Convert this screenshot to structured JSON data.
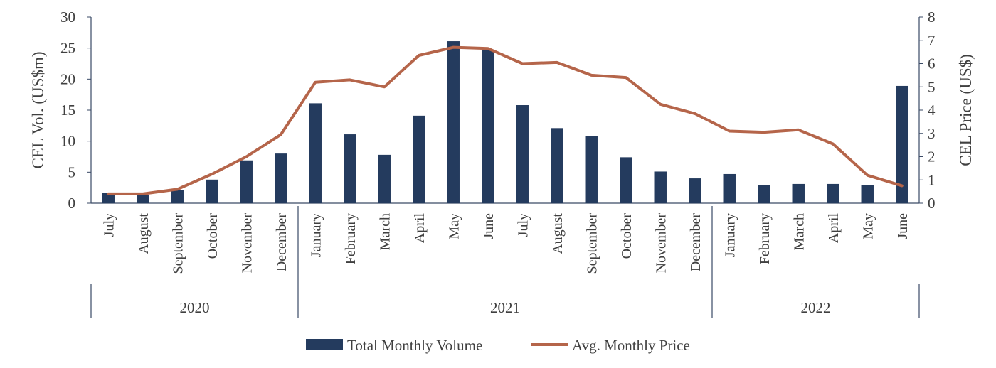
{
  "chart_data": {
    "type": "bar+line",
    "title": "",
    "categories": [
      "July",
      "August",
      "September",
      "October",
      "November",
      "December",
      "January",
      "February",
      "March",
      "April",
      "May",
      "June",
      "July",
      "August",
      "September",
      "October",
      "November",
      "December",
      "January",
      "February",
      "March",
      "April",
      "May",
      "June"
    ],
    "groups": [
      {
        "label": "2020",
        "start": 0,
        "end": 5
      },
      {
        "label": "2021",
        "start": 6,
        "end": 17
      },
      {
        "label": "2022",
        "start": 18,
        "end": 23
      }
    ],
    "series": [
      {
        "name": "Total Monthly Volume",
        "type": "bar",
        "axis": "left",
        "color": "#243b5e",
        "values": [
          1.7,
          1.3,
          2.1,
          3.8,
          6.9,
          8.0,
          16.1,
          11.1,
          7.8,
          14.1,
          26.1,
          24.7,
          15.8,
          12.1,
          10.8,
          7.4,
          5.1,
          4.0,
          4.7,
          2.9,
          3.1,
          3.1,
          2.9,
          18.9
        ]
      },
      {
        "name": "Avg. Monthly Price",
        "type": "line",
        "axis": "right",
        "color": "#b5654a",
        "values": [
          0.4,
          0.4,
          0.6,
          1.25,
          2.0,
          2.95,
          5.2,
          5.3,
          5.0,
          6.35,
          6.7,
          6.65,
          6.0,
          6.05,
          5.5,
          5.4,
          4.25,
          3.85,
          3.1,
          3.05,
          3.15,
          2.55,
          1.2,
          0.75
        ]
      }
    ],
    "y_left": {
      "label": "CEL Vol. (US$m)",
      "min": 0,
      "max": 30,
      "ticks": [
        0,
        5,
        10,
        15,
        20,
        25,
        30
      ]
    },
    "y_right": {
      "label": "CEL Price (US$)",
      "min": 0,
      "max": 8,
      "ticks": [
        0,
        1,
        2,
        3,
        4,
        5,
        6,
        7,
        8
      ]
    },
    "legend": {
      "placement": "bottom-center",
      "items": [
        "Total Monthly Volume",
        "Avg. Monthly Price"
      ]
    },
    "grid": false
  }
}
